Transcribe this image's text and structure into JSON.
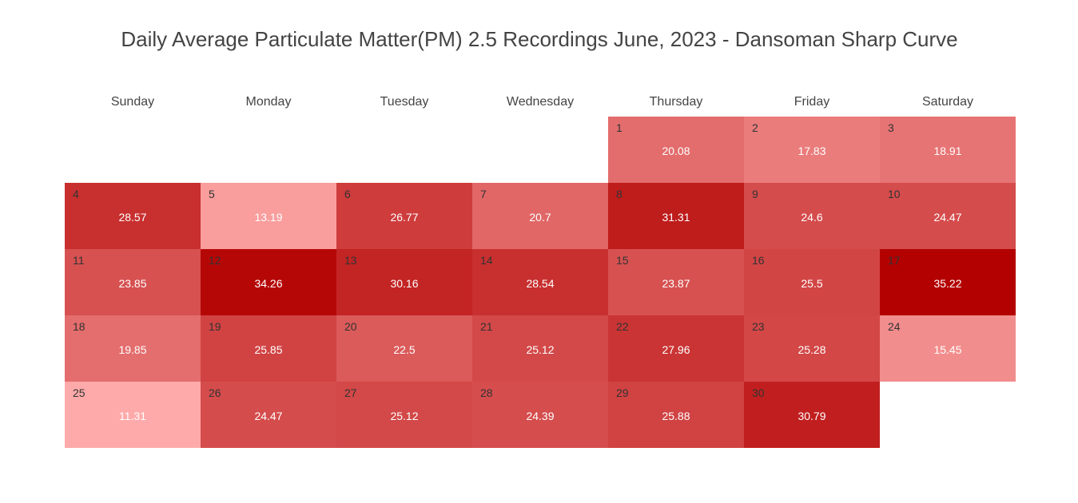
{
  "chart_data": {
    "type": "heatmap",
    "title": "Daily Average Particulate Matter(PM) 2.5 Recordings June, 2023 - Dansoman Sharp Curve",
    "weekdays": [
      "Sunday",
      "Monday",
      "Tuesday",
      "Wednesday",
      "Thursday",
      "Friday",
      "Saturday"
    ],
    "first_weekday_index": 4,
    "days": [
      {
        "day": "1",
        "value": 20.08
      },
      {
        "day": "2",
        "value": 17.83
      },
      {
        "day": "3",
        "value": 18.91
      },
      {
        "day": "4",
        "value": 28.57
      },
      {
        "day": "5",
        "value": 13.19
      },
      {
        "day": "6",
        "value": 26.77
      },
      {
        "day": "7",
        "value": 20.7
      },
      {
        "day": "8",
        "value": 31.31
      },
      {
        "day": "9",
        "value": 24.6
      },
      {
        "day": "10",
        "value": 24.47
      },
      {
        "day": "11",
        "value": 23.85
      },
      {
        "day": "12",
        "value": 34.26
      },
      {
        "day": "13",
        "value": 30.16
      },
      {
        "day": "14",
        "value": 28.54
      },
      {
        "day": "15",
        "value": 23.87
      },
      {
        "day": "16",
        "value": 25.5
      },
      {
        "day": "17",
        "value": 35.22
      },
      {
        "day": "18",
        "value": 19.85
      },
      {
        "day": "19",
        "value": 25.85
      },
      {
        "day": "20",
        "value": 22.5
      },
      {
        "day": "21",
        "value": 25.12
      },
      {
        "day": "22",
        "value": 27.96
      },
      {
        "day": "23",
        "value": 25.28
      },
      {
        "day": "24",
        "value": 15.45
      },
      {
        "day": "25",
        "value": 11.31
      },
      {
        "day": "26",
        "value": 24.47
      },
      {
        "day": "27",
        "value": 25.12
      },
      {
        "day": "28",
        "value": 24.39
      },
      {
        "day": "29",
        "value": 25.88
      },
      {
        "day": "30",
        "value": 30.79
      }
    ],
    "color_scale": {
      "low": "#ffaaaa",
      "high": "#b30000"
    },
    "grid": false,
    "legend": "none"
  }
}
